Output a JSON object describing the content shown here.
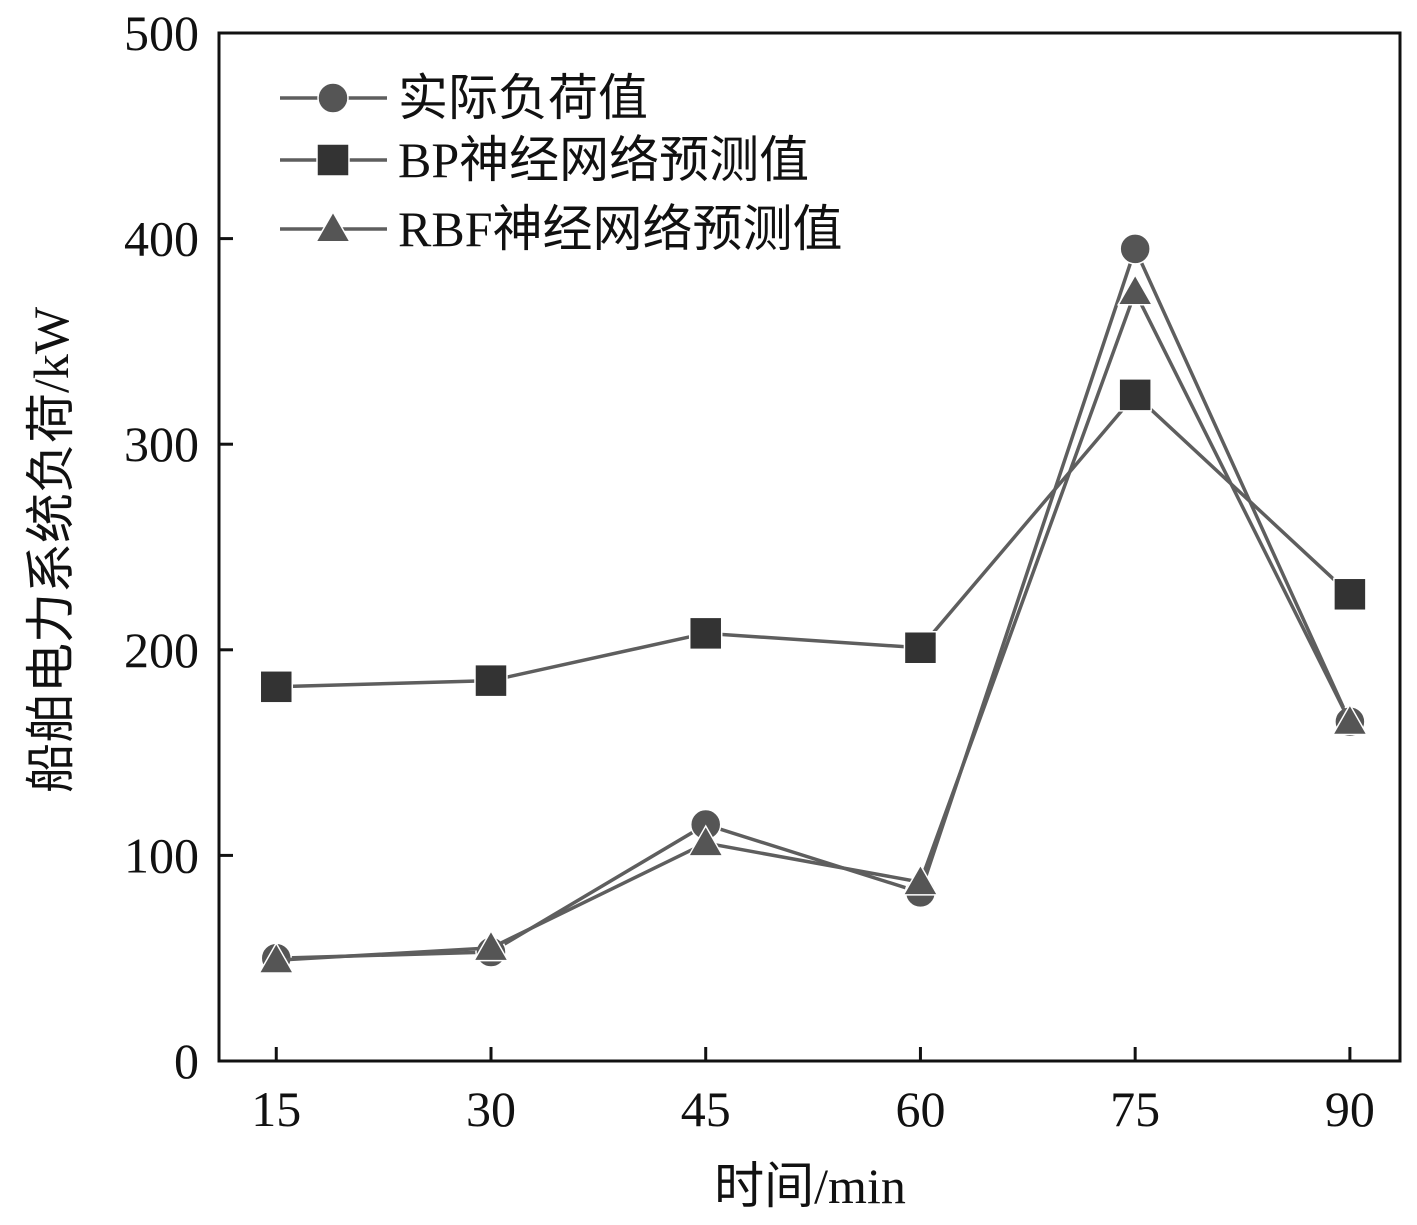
{
  "chart_data": {
    "type": "line",
    "title": "",
    "xlabel": "时间/min",
    "ylabel": "船舶电力系统负荷/kW",
    "categories": [
      "15",
      "30",
      "45",
      "60",
      "75",
      "90"
    ],
    "x": [
      15,
      30,
      45,
      60,
      75,
      90
    ],
    "xlim": [
      11,
      93.5
    ],
    "ylim": [
      0,
      500
    ],
    "yticks": [
      "0",
      "100",
      "200",
      "300",
      "400",
      "500"
    ],
    "grid": false,
    "legend_position": "top-left",
    "series": [
      {
        "name": "实际负荷值",
        "marker": "circle",
        "color": "#555555",
        "values": [
          50,
          53,
          115,
          82,
          395,
          165
        ]
      },
      {
        "name": "BP神经网络预测值",
        "marker": "square",
        "color": "#333333",
        "values": [
          182,
          185,
          208,
          201,
          324,
          227
        ]
      },
      {
        "name": "RBF神经网络预测值",
        "marker": "triangle",
        "color": "#555555",
        "values": [
          49,
          55,
          106,
          87,
          374,
          165
        ]
      }
    ]
  }
}
